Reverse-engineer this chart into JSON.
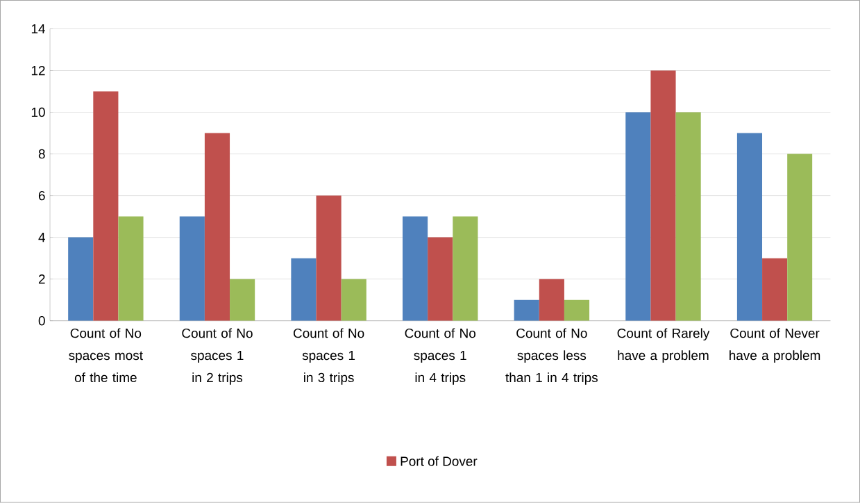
{
  "chart_data": {
    "type": "bar",
    "categories": [
      "Count of No spaces most of the time",
      "Count of No spaces 1 in 2 trips",
      "Count of No spaces 1 in 3 trips",
      "Count of No spaces 1 in 4 trips",
      "Count of No spaces less than 1 in 4 trips",
      "Count of Rarely have a problem",
      "Count of Never have a problem"
    ],
    "series": [
      {
        "color": "#4f81bd",
        "values": [
          4,
          5,
          3,
          5,
          1,
          10,
          9
        ]
      },
      {
        "name": "Port of Dover",
        "color": "#c0504d",
        "values": [
          11,
          9,
          6,
          4,
          2,
          12,
          3
        ]
      },
      {
        "color": "#9bbb59",
        "values": [
          5,
          2,
          2,
          5,
          1,
          10,
          8
        ]
      }
    ],
    "ylim": [
      0,
      14
    ],
    "yticks": [
      0,
      2,
      4,
      6,
      8,
      10,
      12,
      14
    ],
    "grid": "y",
    "legend": "bottom"
  }
}
